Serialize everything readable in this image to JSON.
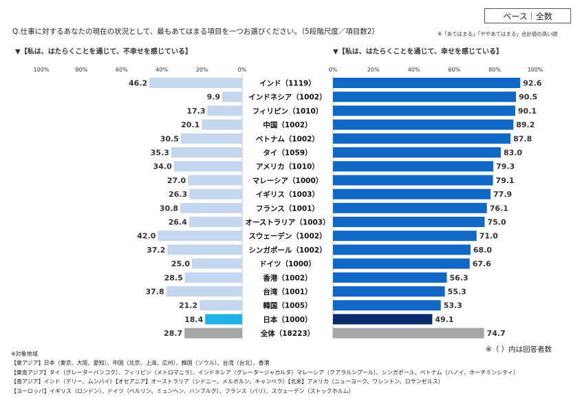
{
  "badge": "ベース｜全数",
  "question": "Q.仕事に対するあなたの現在の状況として、最もあてはまる項目を一つお選びください。（5段階尺度／項目数2）",
  "note_top": "※「あてはまる」「ややあてはまる」合計値の高い順",
  "respondents_note": "※（ ）内は回答者数",
  "footnotes": {
    "title": "※対象地域",
    "lines": [
      "【東アジア】日本（東京、大阪、愛知）、中国（北京、上海、広州）、韓国（ソウル）、台湾（台北）、香港",
      "【東南アジア】タイ（グレーターバンコク）、フィリピン（メトロマニラ）、インドネシア（グレータージャカルタ）マレーシア（クアラルンプール）、シンガポール、ベトナム（ハノイ、ホーチミンシティ）",
      "【南アジア】インド（デリー、ムンバイ）【オセアニア】オーストラリア（シドニー、メルボルン、キャンベラ）【北米】アメリカ（ニューヨーク、ワシントン、ロサンゼルス）",
      "【ヨーロッパ】イギリス（ロンドン）、ドイツ（ベルリン、ミュンヘン、ハンブルグ）、フランス（パリ）、スウェーデン（ストックホルム）"
    ]
  },
  "colors": {
    "left_bar": "#c5d7ef",
    "right_bar": "#1167c4",
    "japan_left": "#1fb1e8",
    "japan_right": "#0b2a6b",
    "total": "#a6a6a6",
    "axis": "#bfbfbf"
  },
  "chart_data": {
    "type": "bar",
    "orientation": "horizontal-butterfly",
    "ticks": [
      0,
      20,
      40,
      60,
      80,
      100
    ],
    "tick_labels": [
      "0%",
      "20%",
      "40%",
      "60%",
      "80%",
      "100%"
    ],
    "xlim": [
      0,
      100
    ],
    "series": [
      {
        "name": "▼【私は、はたらくことを通じて、不幸せを感じている】",
        "side": "left",
        "values": [
          46.2,
          9.9,
          17.3,
          20.1,
          30.5,
          35.3,
          34.0,
          27.0,
          26.3,
          30.8,
          26.4,
          42.0,
          37.2,
          25.0,
          28.5,
          37.8,
          21.2,
          18.4,
          28.7
        ]
      },
      {
        "name": "▼【私は、はたらくことを通じて、幸せを感じている】",
        "side": "right",
        "values": [
          92.6,
          90.5,
          90.1,
          89.2,
          87.8,
          83.0,
          79.3,
          79.1,
          77.9,
          76.1,
          75.0,
          71.0,
          68.0,
          67.6,
          56.3,
          55.3,
          53.3,
          49.1,
          74.7
        ]
      }
    ],
    "categories": [
      "インド（1119）",
      "インドネシア（1002）",
      "フィリピン（1010）",
      "中国（1002）",
      "ベトナム（1002）",
      "タイ（1059）",
      "アメリカ（1010）",
      "マレーシア（1000）",
      "イギリス（1003）",
      "フランス（1001）",
      "オーストラリア（1003）",
      "スウェーデン（1002）",
      "シンガポール（1002）",
      "ドイツ（1000）",
      "香港（1002）",
      "台湾（1001）",
      "韓国（1005）",
      "日本（1000）",
      "全体（18223）"
    ],
    "highlight": {
      "日本（1000）": "japan",
      "全体（18223）": "total"
    }
  }
}
